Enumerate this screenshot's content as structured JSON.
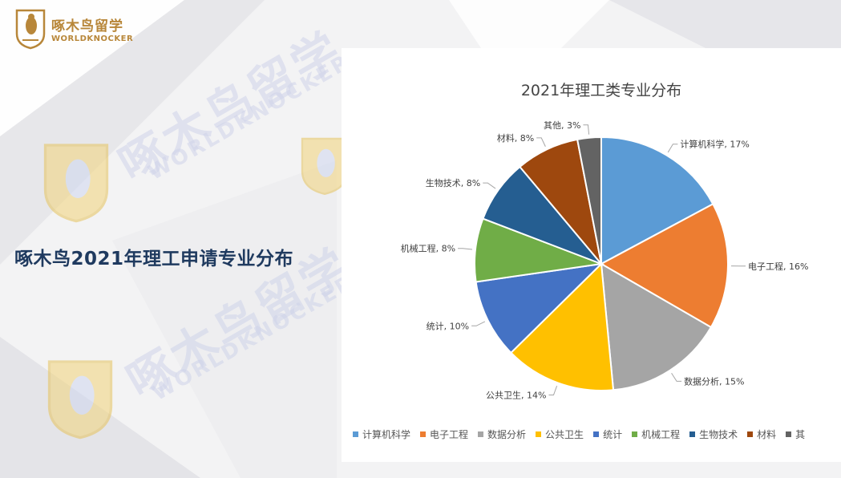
{
  "brand": {
    "name_cn": "啄木鸟留学",
    "name_en": "WORLDKNOCKER"
  },
  "watermark": {
    "cn": "啄木鸟留学",
    "en": "WORLDKNOCKER"
  },
  "side_title": "啄木鸟2021年理工申请专业分布",
  "colors": {
    "brand_gold": "#b8873a",
    "title_navy": "#1f3a5f"
  },
  "chart_data": {
    "type": "pie",
    "title": "2021年理工类专业分布",
    "legend_position": "bottom",
    "slices": [
      {
        "label": "计算机科学",
        "value": 17,
        "display": "计算机科学, 17%",
        "color": "#5b9bd5"
      },
      {
        "label": "电子工程",
        "value": 16,
        "display": "电子工程, 16%",
        "color": "#ed7d31"
      },
      {
        "label": "数据分析",
        "value": 15,
        "display": "数据分析, 15%",
        "color": "#a5a5a5"
      },
      {
        "label": "公共卫生",
        "value": 14,
        "display": "公共卫生, 14%",
        "color": "#ffc000"
      },
      {
        "label": "统计",
        "value": 10,
        "display": "统计, 10%",
        "color": "#4472c4"
      },
      {
        "label": "机械工程",
        "value": 8,
        "display": "机械工程, 8%",
        "color": "#70ad47"
      },
      {
        "label": "生物技术",
        "value": 8,
        "display": "生物技术, 8%",
        "color": "#255e91"
      },
      {
        "label": "材料",
        "value": 8,
        "display": "材料, 8%",
        "color": "#9e480e"
      },
      {
        "label": "其他",
        "value": 3,
        "display": "其他, 3%",
        "color": "#636363"
      }
    ],
    "legend_visible": [
      "计算机科学",
      "电子工程",
      "数据分析",
      "公共卫生",
      "统计",
      "机械工程",
      "生物技术",
      "材料",
      "其"
    ]
  }
}
